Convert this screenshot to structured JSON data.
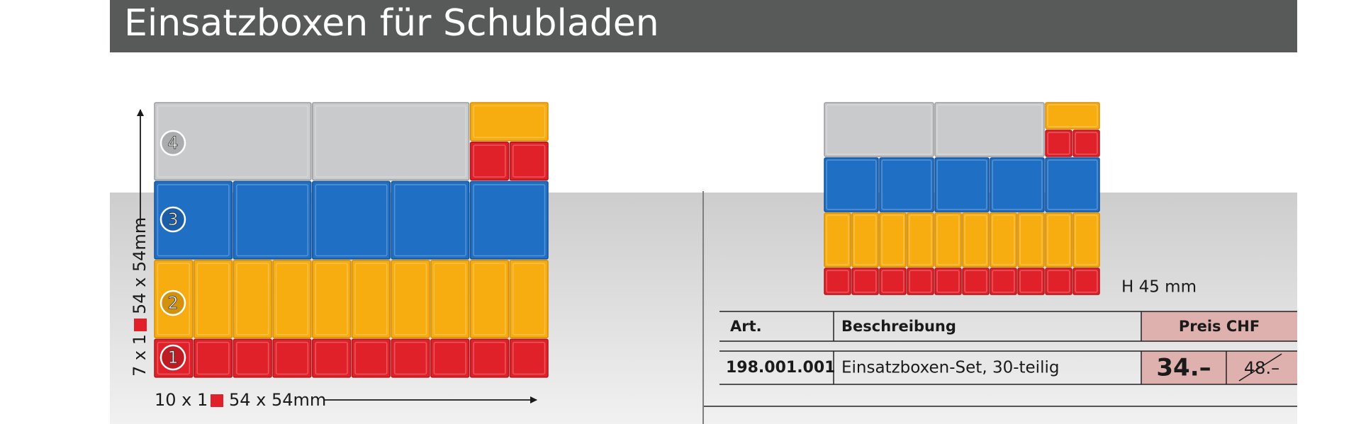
{
  "header": {
    "title": "Einsatzboxen für Schubladen"
  },
  "illustration": {
    "layers": [
      "1",
      "2",
      "3",
      "4"
    ],
    "vertical_label": {
      "count": "7 x 1",
      "size": "54 x 54mm"
    },
    "horizontal_label": {
      "count": "10 x 1",
      "size": "54 x 54mm"
    },
    "height_note": "H 45 mm"
  },
  "table": {
    "headers": [
      "Art.",
      "Beschreibung",
      "Preis CHF"
    ],
    "rows": [
      {
        "article": "198.001.001",
        "description": "Einsatzboxen-Set, 30-teilig",
        "price": "34.–",
        "old_price": "48.–"
      }
    ]
  }
}
